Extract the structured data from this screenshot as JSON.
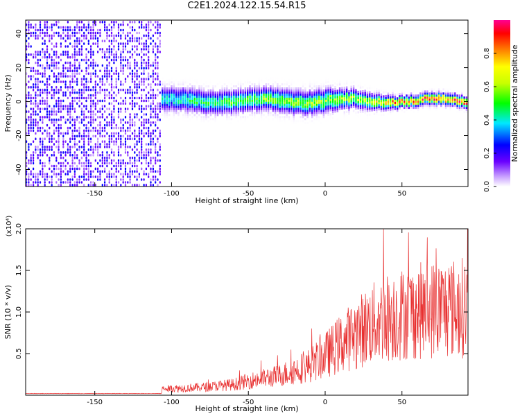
{
  "title": "C2E1.2024.122.15.54.R15",
  "chart_data": [
    {
      "type": "heatmap",
      "xlabel": "Height of straight line (km)",
      "ylabel": "Frequency (Hz)",
      "xlim": [
        -195,
        93
      ],
      "ylim": [
        -50,
        48
      ],
      "x_ticks": [
        -150,
        -100,
        -50,
        0,
        50
      ],
      "y_ticks": [
        -40,
        -20,
        0,
        20,
        40
      ],
      "colorbar": {
        "label": "Normalized spectral amplitude",
        "range": [
          0,
          1
        ],
        "ticks": [
          "0.0",
          "0.2",
          "0.4",
          "0.6",
          "0.8"
        ]
      },
      "regions": [
        {
          "x_range": [
            -195,
            -107
          ],
          "pattern": "broadband noise, amplitude ~0.1-0.25",
          "freq_range": [
            -50,
            48
          ]
        },
        {
          "x_range": [
            -107,
            93
          ],
          "pattern": "narrow band centered near 0 Hz",
          "peak_amplitude_trend": [
            [
              -100,
              0.45
            ],
            [
              -50,
              0.55
            ],
            [
              0,
              0.6
            ],
            [
              20,
              0.6
            ],
            [
              50,
              0.85
            ],
            [
              90,
              0.9
            ]
          ],
          "band_halfwidth_hz": [
            [
              -100,
              6
            ],
            [
              0,
              6
            ],
            [
              50,
              3
            ],
            [
              90,
              3
            ]
          ]
        }
      ]
    },
    {
      "type": "line",
      "xlabel": "Height of straight line (km)",
      "ylabel": "SNR (10 * v/v)",
      "y_multiplier": "(x10⁴)",
      "xlim": [
        -195,
        93
      ],
      "ylim": [
        0,
        2.0
      ],
      "x_ticks": [
        -150,
        -100,
        -50,
        0,
        50
      ],
      "y_ticks": [
        "0.5",
        "1.0",
        "1.5",
        "2.0"
      ],
      "color": "#e83030",
      "trend": {
        "x": [
          -195,
          -150,
          -107,
          -106,
          -80,
          -60,
          -50,
          -30,
          -10,
          0,
          10,
          20,
          30,
          40,
          50,
          60,
          70,
          80,
          93
        ],
        "y": [
          0.02,
          0.02,
          0.02,
          0.07,
          0.09,
          0.12,
          0.16,
          0.22,
          0.34,
          0.45,
          0.58,
          0.7,
          0.8,
          0.88,
          0.92,
          0.95,
          0.97,
          0.98,
          1.0
        ]
      },
      "peak": {
        "x": 38,
        "y": 2.0
      }
    }
  ]
}
